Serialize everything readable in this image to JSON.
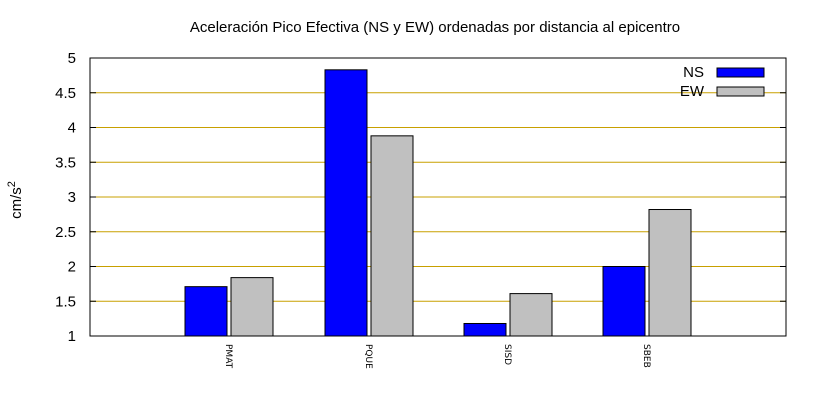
{
  "chart_data": {
    "type": "bar",
    "title": "Aceleración Pico Efectiva (NS y EW) ordenadas por distancia al epicentro",
    "ylabel_base": "cm/s",
    "ylabel_sup": "2",
    "xlabel": "",
    "ylim": [
      1,
      5
    ],
    "yticks": [
      "1",
      "1.5",
      "2",
      "2.5",
      "3",
      "3.5",
      "4",
      "4.5",
      "5"
    ],
    "categories": [
      "PMAT",
      "PQUE",
      "SISD",
      "SBEB"
    ],
    "series": [
      {
        "name": "NS",
        "color": "#0000ff",
        "values": [
          1.71,
          4.83,
          1.18,
          2.0
        ]
      },
      {
        "name": "EW",
        "color": "#c0c0c0",
        "values": [
          1.84,
          3.88,
          1.61,
          2.82
        ]
      }
    ],
    "grid": true,
    "grid_color": "#c8a000",
    "legend_position": "top-right"
  }
}
